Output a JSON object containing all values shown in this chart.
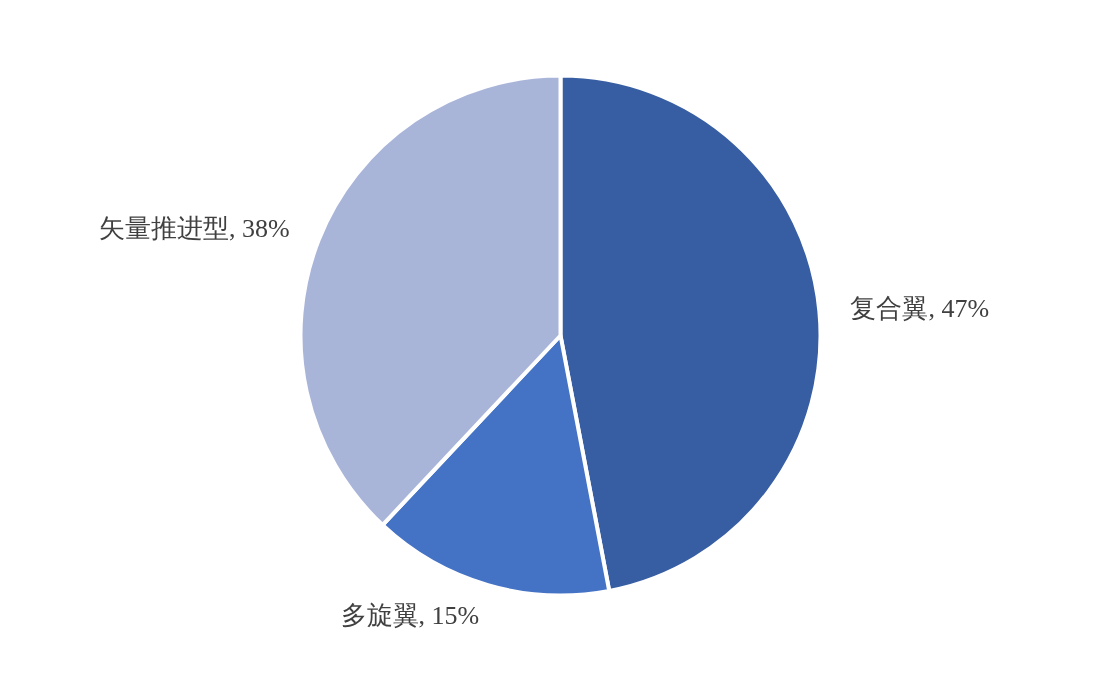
{
  "chart_data": {
    "type": "pie",
    "categories": [
      "复合翼",
      "多旋翼",
      "矢量推进型"
    ],
    "values": [
      47,
      15,
      38
    ],
    "colors": [
      "#375ea2",
      "#4472c4",
      "#a9b4d9"
    ],
    "value_labels": [
      "47%",
      "15%",
      "38%"
    ]
  }
}
